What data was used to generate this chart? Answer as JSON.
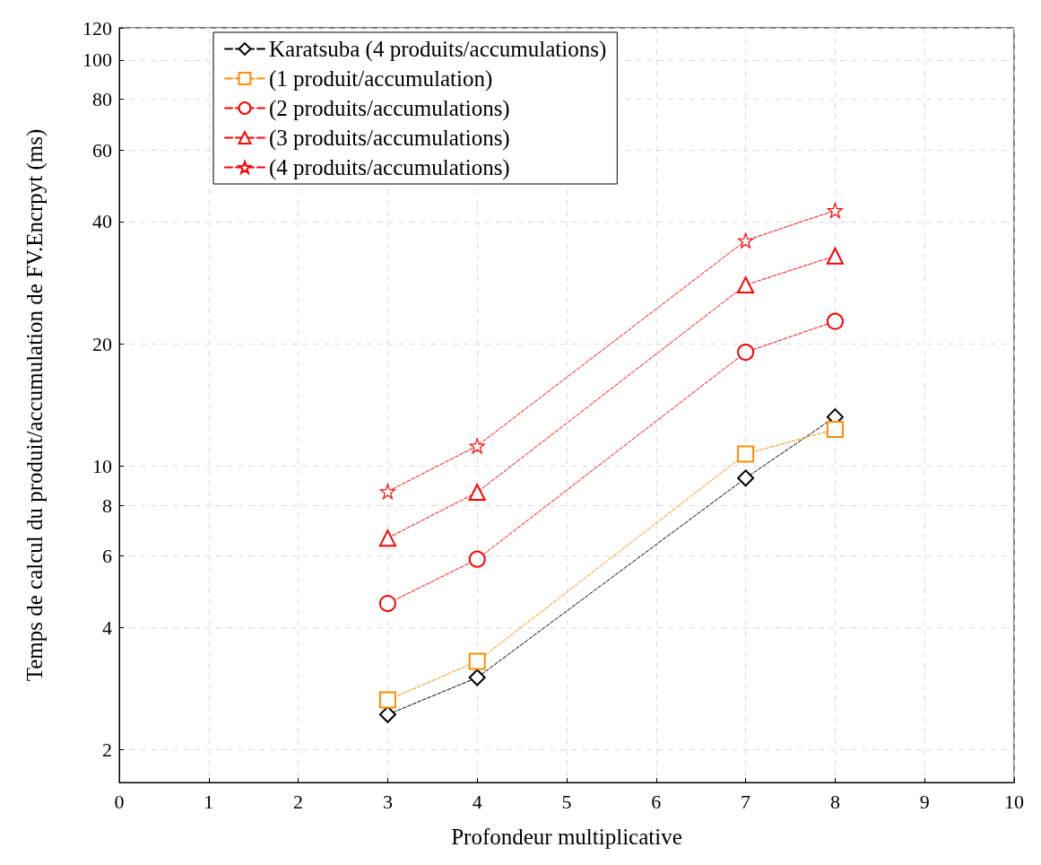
{
  "chart_data": {
    "type": "line",
    "xlabel": "Profondeur multiplicative",
    "ylabel": "Temps de calcul du produit/accumulation de FV.Encrpyt (ms)",
    "x": [
      3,
      4,
      7,
      8
    ],
    "log": "y",
    "grid": true,
    "legend": "top left",
    "line_style": "dashed",
    "xlim": [
      0,
      10
    ],
    "xticks": [
      0,
      1,
      2,
      3,
      4,
      5,
      6,
      7,
      8,
      9,
      10
    ],
    "ylim": [
      1.66,
      120
    ],
    "yticks": [
      2,
      4,
      6,
      8,
      10,
      20,
      40,
      60,
      80,
      100,
      120
    ],
    "series": [
      {
        "name": "Karatsuba (4 produits/accumulations)",
        "color": "#000000",
        "marker": "diamond",
        "values": [
          2.44,
          3.01,
          9.33,
          13.2
        ]
      },
      {
        "name": "(1 produit/accumulation)",
        "color": "#ff8c00",
        "marker": "square",
        "values": [
          2.65,
          3.3,
          10.7,
          12.3
        ]
      },
      {
        "name": "(2 produits/accumulations)",
        "color": "#ff0000",
        "marker": "circle",
        "values": [
          4.58,
          5.89,
          19.05,
          22.7
        ]
      },
      {
        "name": "(3 produits/accumulations)",
        "color": "#ff0000",
        "marker": "triangle",
        "values": [
          6.64,
          8.61,
          27.9,
          32.9
        ]
      },
      {
        "name": "(4 produits/accumulations)",
        "color": "#ff0000",
        "marker": "star",
        "values": [
          8.65,
          11.2,
          35.9,
          42.6
        ]
      }
    ]
  }
}
